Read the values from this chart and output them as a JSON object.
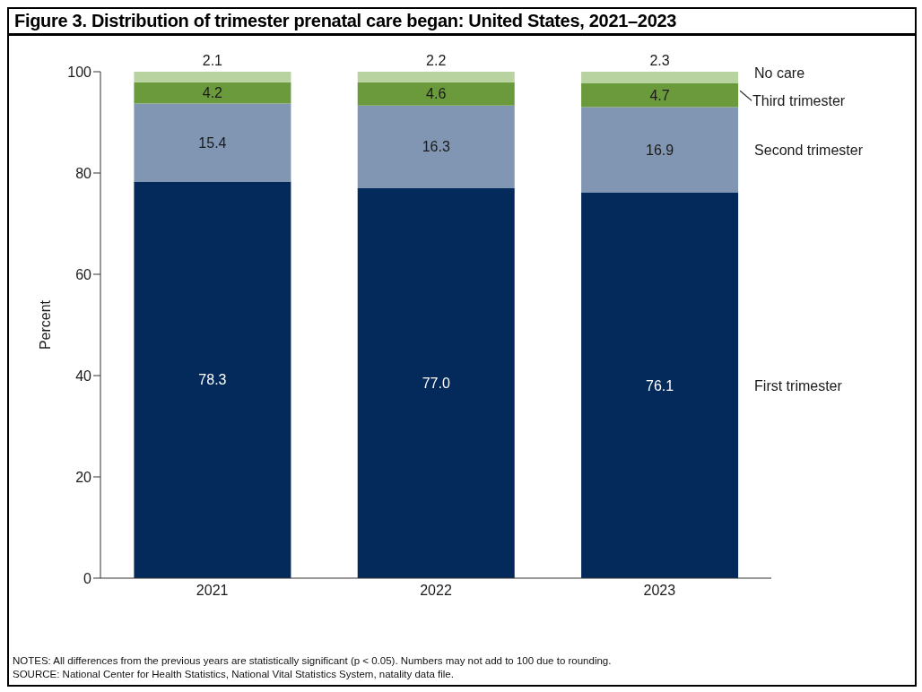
{
  "chart_data": {
    "type": "bar",
    "stacked": true,
    "title": "Figure 3. Distribution of trimester prenatal care began: United States, 2021–2023",
    "ylabel": "Percent",
    "categories": [
      "2021",
      "2022",
      "2023"
    ],
    "series": [
      {
        "name": "First trimester",
        "color": "#032a5a",
        "values": [
          78.3,
          77.0,
          76.1
        ],
        "value_labels": [
          "78.3",
          "77.0",
          "76.1"
        ]
      },
      {
        "name": "Second trimester",
        "color": "#8196b2",
        "values": [
          15.4,
          16.3,
          16.9
        ],
        "value_labels": [
          "15.4",
          "16.3",
          "16.9"
        ]
      },
      {
        "name": "Third trimester",
        "color": "#6b9a3c",
        "values": [
          4.2,
          4.6,
          4.7
        ],
        "value_labels": [
          "4.2",
          "4.6",
          "4.7"
        ]
      },
      {
        "name": "No care",
        "color": "#b9d3a0",
        "values": [
          2.1,
          2.2,
          2.3
        ],
        "value_labels": [
          "2.1",
          "2.2",
          "2.3"
        ]
      }
    ],
    "ylim": [
      0,
      100
    ],
    "yticks": [
      0,
      20,
      40,
      60,
      80,
      100
    ],
    "grid": false,
    "legend": false,
    "annotations": [
      "NOTES: All differences from the previous years are statistically significant (p < 0.05). Numbers may not add to 100 due to rounding.",
      "SOURCE: National Center for Health Statistics, National Vital Statistics System, natality data file."
    ]
  }
}
